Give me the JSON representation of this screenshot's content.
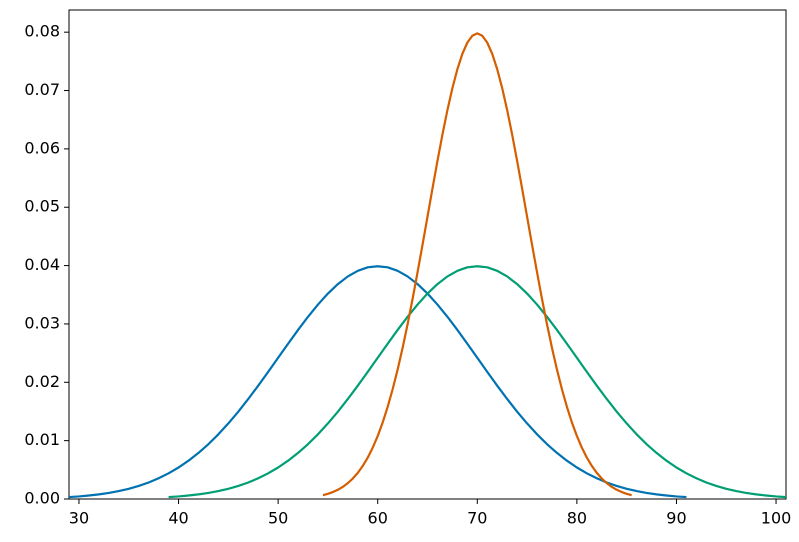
{
  "chart_data": {
    "type": "line",
    "xlim": [
      29,
      101
    ],
    "ylim": [
      0,
      0.0838
    ],
    "xticks": [
      30,
      40,
      50,
      60,
      70,
      80,
      90,
      100
    ],
    "yticks": [
      {
        "value": 0,
        "label": "0.00"
      },
      {
        "value": 0.01,
        "label": "0.01"
      },
      {
        "value": 0.02,
        "label": "0.02"
      },
      {
        "value": 0.03,
        "label": "0.03"
      },
      {
        "value": 0.04,
        "label": "0.04"
      },
      {
        "value": 0.05,
        "label": "0.05"
      },
      {
        "value": 0.06,
        "label": "0.06"
      },
      {
        "value": 0.07,
        "label": "0.07"
      },
      {
        "value": 0.08,
        "label": "0.08"
      }
    ],
    "series": [
      {
        "color": "#0072b2",
        "x": [
          29,
          30,
          31,
          32,
          33,
          34,
          35,
          36,
          37,
          38,
          39,
          40,
          41,
          42,
          43,
          44,
          45,
          46,
          47,
          48,
          49,
          50,
          51,
          52,
          53,
          54,
          55,
          56,
          57,
          58,
          59,
          60,
          61,
          62,
          63,
          64,
          65,
          66,
          67,
          68,
          69,
          70,
          71,
          72,
          73,
          74,
          75,
          76,
          77,
          78,
          79,
          80,
          81,
          82,
          83,
          84,
          85,
          86,
          87,
          88,
          89,
          90,
          91
        ],
        "values": [
          0.00033,
          0.00044,
          0.0006,
          0.00079,
          0.00104,
          0.00136,
          0.00175,
          0.00224,
          0.00283,
          0.00355,
          0.0044,
          0.0054,
          0.00656,
          0.0079,
          0.0094,
          0.01109,
          0.01295,
          0.01497,
          0.01714,
          0.01942,
          0.02179,
          0.0242,
          0.02661,
          0.02897,
          0.03123,
          0.03332,
          0.03521,
          0.03683,
          0.03814,
          0.0391,
          0.0397,
          0.03989,
          0.0397,
          0.0391,
          0.03814,
          0.03683,
          0.03521,
          0.03332,
          0.03123,
          0.02897,
          0.02661,
          0.0242,
          0.02179,
          0.01942,
          0.01714,
          0.01497,
          0.01295,
          0.01109,
          0.0094,
          0.0079,
          0.00656,
          0.0054,
          0.0044,
          0.00355,
          0.00283,
          0.00224,
          0.00175,
          0.00136,
          0.00104,
          0.00079,
          0.0006,
          0.00044,
          0.00033
        ]
      },
      {
        "color": "#009e73",
        "x": [
          39,
          40,
          41,
          42,
          43,
          44,
          45,
          46,
          47,
          48,
          49,
          50,
          51,
          52,
          53,
          54,
          55,
          56,
          57,
          58,
          59,
          60,
          61,
          62,
          63,
          64,
          65,
          66,
          67,
          68,
          69,
          70,
          71,
          72,
          73,
          74,
          75,
          76,
          77,
          78,
          79,
          80,
          81,
          82,
          83,
          84,
          85,
          86,
          87,
          88,
          89,
          90,
          91,
          92,
          93,
          94,
          95,
          96,
          97,
          98,
          99,
          100,
          101
        ],
        "values": [
          0.00033,
          0.00044,
          0.0006,
          0.00079,
          0.00104,
          0.00136,
          0.00175,
          0.00224,
          0.00283,
          0.00355,
          0.0044,
          0.0054,
          0.00656,
          0.0079,
          0.0094,
          0.01109,
          0.01295,
          0.01497,
          0.01714,
          0.01942,
          0.02179,
          0.0242,
          0.02661,
          0.02897,
          0.03123,
          0.03332,
          0.03521,
          0.03683,
          0.03814,
          0.0391,
          0.0397,
          0.03989,
          0.0397,
          0.0391,
          0.03814,
          0.03683,
          0.03521,
          0.03332,
          0.03123,
          0.02897,
          0.02661,
          0.0242,
          0.02179,
          0.01942,
          0.01714,
          0.01497,
          0.01295,
          0.01109,
          0.0094,
          0.0079,
          0.00656,
          0.0054,
          0.0044,
          0.00355,
          0.00283,
          0.00224,
          0.00175,
          0.00136,
          0.00104,
          0.00079,
          0.0006,
          0.00044,
          0.00033
        ]
      },
      {
        "color": "#d55e00",
        "x": [
          54.5,
          55,
          55.5,
          56,
          56.5,
          57,
          57.5,
          58,
          58.5,
          59,
          59.5,
          60,
          60.5,
          61,
          61.5,
          62,
          62.5,
          63,
          63.5,
          64,
          64.5,
          65,
          65.5,
          66,
          66.5,
          67,
          67.5,
          68,
          68.5,
          69,
          69.5,
          70,
          70.5,
          71,
          71.5,
          72,
          72.5,
          73,
          73.5,
          74,
          74.5,
          75,
          75.5,
          76,
          76.5,
          77,
          77.5,
          78,
          78.5,
          79,
          79.5,
          80,
          80.5,
          81,
          81.5,
          82,
          82.5,
          83,
          83.5,
          84,
          84.5,
          85,
          85.5
        ],
        "values": [
          0.00065,
          0.00089,
          0.00119,
          0.00158,
          0.00208,
          0.00272,
          0.00351,
          0.00448,
          0.00567,
          0.0071,
          0.0088,
          0.0108,
          0.01312,
          0.01579,
          0.01881,
          0.02218,
          0.0259,
          0.02995,
          0.03427,
          0.03884,
          0.04357,
          0.04839,
          0.05322,
          0.05794,
          0.06245,
          0.06665,
          0.07041,
          0.07365,
          0.07628,
          0.07821,
          0.07939,
          0.07979,
          0.07939,
          0.07821,
          0.07628,
          0.07365,
          0.07041,
          0.06665,
          0.06245,
          0.05794,
          0.05322,
          0.04839,
          0.04357,
          0.03884,
          0.03427,
          0.02995,
          0.0259,
          0.02218,
          0.01881,
          0.01579,
          0.01312,
          0.0108,
          0.0088,
          0.0071,
          0.00567,
          0.00448,
          0.00351,
          0.00272,
          0.00208,
          0.00158,
          0.00119,
          0.00089,
          0.00065
        ]
      }
    ]
  }
}
